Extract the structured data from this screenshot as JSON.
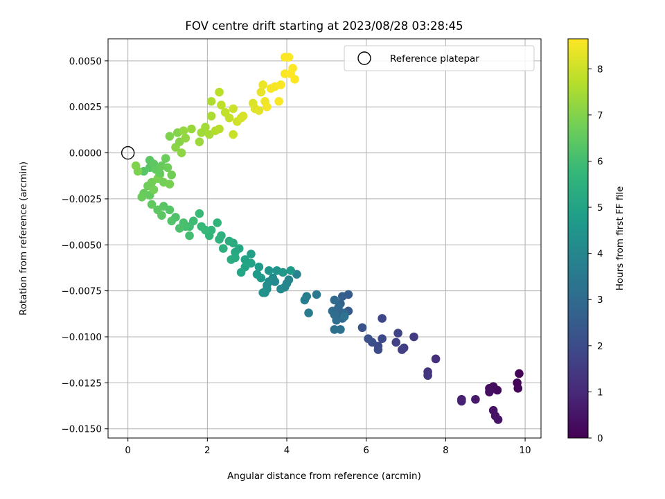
{
  "chart_data": {
    "type": "scatter",
    "title": "FOV centre drift starting at 2023/08/28 03:28:45",
    "xlabel": "Angular distance from reference (arcmin)",
    "ylabel": "Rotation from reference (arcmin)",
    "xlim": [
      -0.5,
      10.4
    ],
    "ylim": [
      -0.0155,
      0.0062
    ],
    "xticks": [
      0,
      2,
      4,
      6,
      8,
      10
    ],
    "yticks": [
      0.005,
      0.0025,
      0.0,
      -0.0025,
      -0.005,
      -0.0075,
      -0.01,
      -0.0125,
      -0.015
    ],
    "xtick_labels": [
      "0",
      "2",
      "4",
      "6",
      "8",
      "10"
    ],
    "ytick_labels": [
      "0.0050",
      "0.0025",
      "0.0000",
      "−0.0025",
      "−0.0050",
      "−0.0075",
      "−0.0100",
      "−0.0125",
      "−0.0150"
    ],
    "grid": true,
    "legend": {
      "position": "top-right",
      "entries": [
        "Reference platepar"
      ]
    },
    "reference_point": {
      "x": 0,
      "y": 0
    },
    "colorbar": {
      "label": "Hours from first FF file",
      "colormap": "viridis",
      "range": [
        0,
        8.65
      ],
      "ticks": [
        0,
        1,
        2,
        3,
        4,
        5,
        6,
        7,
        8
      ],
      "tick_labels": [
        "0",
        "1",
        "2",
        "3",
        "4",
        "5",
        "6",
        "7",
        "8"
      ]
    },
    "series": [
      {
        "columns": [
          "x",
          "y",
          "hours"
        ],
        "points": [
          [
            9.85,
            -0.012,
            0.05
          ],
          [
            9.8,
            -0.0125,
            0.1
          ],
          [
            9.82,
            -0.0128,
            0.12
          ],
          [
            9.3,
            -0.0129,
            0.2
          ],
          [
            9.2,
            -0.0127,
            0.25
          ],
          [
            9.1,
            -0.0128,
            0.3
          ],
          [
            9.1,
            -0.013,
            0.35
          ],
          [
            9.2,
            -0.014,
            0.4
          ],
          [
            9.25,
            -0.0143,
            0.45
          ],
          [
            9.32,
            -0.0145,
            0.5
          ],
          [
            8.75,
            -0.0134,
            0.6
          ],
          [
            8.4,
            -0.0134,
            0.7
          ],
          [
            8.4,
            -0.0135,
            0.8
          ],
          [
            7.75,
            -0.0112,
            1.2
          ],
          [
            7.55,
            -0.0119,
            1.3
          ],
          [
            7.55,
            -0.0121,
            1.35
          ],
          [
            7.2,
            -0.01,
            1.5
          ],
          [
            6.95,
            -0.0106,
            1.6
          ],
          [
            6.9,
            -0.0107,
            1.65
          ],
          [
            6.75,
            -0.0103,
            1.7
          ],
          [
            6.8,
            -0.0098,
            1.75
          ],
          [
            6.4,
            -0.009,
            1.8
          ],
          [
            6.4,
            -0.0101,
            1.9
          ],
          [
            6.3,
            -0.0105,
            1.95
          ],
          [
            6.3,
            -0.0107,
            2.0
          ],
          [
            6.15,
            -0.0103,
            2.05
          ],
          [
            6.05,
            -0.0101,
            2.1
          ],
          [
            5.9,
            -0.0095,
            2.2
          ],
          [
            5.55,
            -0.0086,
            2.4
          ],
          [
            5.55,
            -0.0077,
            2.5
          ],
          [
            5.4,
            -0.0078,
            2.6
          ],
          [
            5.35,
            -0.0082,
            2.7
          ],
          [
            5.35,
            -0.0087,
            2.75
          ],
          [
            5.4,
            -0.009,
            2.8
          ],
          [
            5.45,
            -0.0087,
            2.85
          ],
          [
            5.3,
            -0.0084,
            2.9
          ],
          [
            5.2,
            -0.008,
            2.95
          ],
          [
            5.15,
            -0.0086,
            3.0
          ],
          [
            5.2,
            -0.0088,
            3.05
          ],
          [
            5.25,
            -0.0091,
            3.1
          ],
          [
            5.2,
            -0.0096,
            3.15
          ],
          [
            5.35,
            -0.0096,
            3.2
          ],
          [
            5.45,
            -0.0089,
            3.25
          ],
          [
            4.75,
            -0.0077,
            3.5
          ],
          [
            4.55,
            -0.0087,
            3.6
          ],
          [
            4.5,
            -0.0078,
            3.65
          ],
          [
            4.45,
            -0.008,
            3.7
          ],
          [
            4.25,
            -0.0066,
            3.8
          ],
          [
            4.05,
            -0.0069,
            3.9
          ],
          [
            4.0,
            -0.0071,
            3.95
          ],
          [
            3.95,
            -0.0073,
            4.0
          ],
          [
            3.85,
            -0.0074,
            4.05
          ],
          [
            3.7,
            -0.007,
            4.1
          ],
          [
            3.65,
            -0.0068,
            4.15
          ],
          [
            3.55,
            -0.007,
            4.2
          ],
          [
            3.5,
            -0.0072,
            4.25
          ],
          [
            3.5,
            -0.0074,
            4.3
          ],
          [
            3.45,
            -0.0076,
            4.35
          ],
          [
            3.4,
            -0.0076,
            4.4
          ],
          [
            3.55,
            -0.0064,
            4.45
          ],
          [
            3.75,
            -0.0064,
            4.5
          ],
          [
            3.9,
            -0.0065,
            4.55
          ],
          [
            4.1,
            -0.0064,
            4.6
          ],
          [
            3.35,
            -0.0068,
            4.65
          ],
          [
            3.25,
            -0.0066,
            4.7
          ],
          [
            3.3,
            -0.0062,
            4.75
          ],
          [
            3.1,
            -0.0055,
            4.9
          ],
          [
            3.1,
            -0.006,
            4.95
          ],
          [
            2.95,
            -0.0058,
            5.0
          ],
          [
            2.95,
            -0.0062,
            5.05
          ],
          [
            2.85,
            -0.0065,
            5.1
          ],
          [
            2.8,
            -0.0052,
            5.15
          ],
          [
            2.7,
            -0.0054,
            5.2
          ],
          [
            2.7,
            -0.0057,
            5.25
          ],
          [
            2.6,
            -0.0058,
            5.3
          ],
          [
            2.65,
            -0.0049,
            5.35
          ],
          [
            2.55,
            -0.0048,
            5.4
          ],
          [
            2.4,
            -0.0052,
            5.45
          ],
          [
            2.35,
            -0.0045,
            5.5
          ],
          [
            2.3,
            -0.0047,
            5.55
          ],
          [
            2.25,
            -0.0038,
            5.6
          ],
          [
            2.1,
            -0.0042,
            5.65
          ],
          [
            2.05,
            -0.0045,
            5.7
          ],
          [
            1.95,
            -0.0042,
            5.75
          ],
          [
            1.85,
            -0.004,
            5.8
          ],
          [
            1.8,
            -0.0033,
            5.85
          ],
          [
            1.65,
            -0.0037,
            5.9
          ],
          [
            1.55,
            -0.004,
            5.95
          ],
          [
            1.55,
            -0.0045,
            6.0
          ],
          [
            1.45,
            -0.004,
            6.05
          ],
          [
            1.4,
            -0.0038,
            6.1
          ],
          [
            1.3,
            -0.0041,
            6.15
          ],
          [
            1.2,
            -0.0035,
            6.2
          ],
          [
            1.1,
            -0.0037,
            6.25
          ],
          [
            1.05,
            -0.0031,
            6.3
          ],
          [
            0.9,
            -0.0029,
            6.35
          ],
          [
            0.85,
            -0.0034,
            6.4
          ],
          [
            0.75,
            -0.0031,
            6.45
          ],
          [
            0.6,
            -0.0028,
            6.5
          ],
          [
            0.55,
            -0.0023,
            6.55
          ],
          [
            0.4,
            -0.0022,
            6.6
          ],
          [
            0.35,
            -0.0024,
            6.65
          ],
          [
            0.5,
            -0.0018,
            6.7
          ],
          [
            0.6,
            -0.0016,
            6.75
          ],
          [
            0.65,
            -0.002,
            6.8
          ],
          [
            0.75,
            -0.0014,
            6.85
          ],
          [
            0.8,
            -0.0012,
            6.9
          ],
          [
            0.4,
            -0.001,
            6.3
          ],
          [
            0.55,
            -0.0008,
            6.35
          ],
          [
            0.55,
            -0.0004,
            6.4
          ],
          [
            0.65,
            -0.0006,
            6.45
          ],
          [
            0.7,
            -0.0009,
            6.5
          ],
          [
            0.8,
            -0.0011,
            6.55
          ],
          [
            0.85,
            -0.0007,
            6.6
          ],
          [
            0.95,
            -0.0003,
            6.65
          ],
          [
            1.0,
            -0.0008,
            6.7
          ],
          [
            1.1,
            -0.0012,
            6.75
          ],
          [
            0.9,
            -0.0016,
            6.8
          ],
          [
            1.05,
            -0.0017,
            6.85
          ],
          [
            0.25,
            -0.001,
            6.9
          ],
          [
            0.2,
            -0.0007,
            6.95
          ],
          [
            1.05,
            0.0009,
            6.95
          ],
          [
            1.25,
            0.0011,
            7.0
          ],
          [
            1.3,
            0.0006,
            7.05
          ],
          [
            1.2,
            0.0003,
            7.1
          ],
          [
            1.35,
            0.0,
            7.15
          ],
          [
            1.45,
            0.0008,
            7.2
          ],
          [
            1.4,
            0.0012,
            7.25
          ],
          [
            1.6,
            0.0013,
            7.3
          ],
          [
            1.8,
            0.0006,
            7.35
          ],
          [
            1.85,
            0.0011,
            7.4
          ],
          [
            1.95,
            0.0014,
            7.45
          ],
          [
            2.05,
            0.001,
            7.5
          ],
          [
            2.1,
            0.002,
            7.55
          ],
          [
            2.1,
            0.0028,
            7.6
          ],
          [
            2.2,
            0.0012,
            7.65
          ],
          [
            2.3,
            0.0013,
            7.7
          ],
          [
            2.3,
            0.0033,
            7.75
          ],
          [
            2.35,
            0.0026,
            7.8
          ],
          [
            2.45,
            0.0022,
            7.85
          ],
          [
            2.55,
            0.0019,
            7.9
          ],
          [
            2.65,
            0.001,
            7.95
          ],
          [
            2.65,
            0.0024,
            8.0
          ],
          [
            2.75,
            0.0017,
            8.05
          ],
          [
            2.85,
            0.0019,
            8.1
          ],
          [
            2.9,
            0.002,
            8.15
          ],
          [
            3.15,
            0.0027,
            8.2
          ],
          [
            3.2,
            0.0024,
            8.25
          ],
          [
            3.3,
            0.0023,
            8.3
          ],
          [
            3.35,
            0.0033,
            8.35
          ],
          [
            3.4,
            0.0037,
            8.4
          ],
          [
            3.45,
            0.0028,
            8.45
          ],
          [
            3.5,
            0.0025,
            8.5
          ],
          [
            3.6,
            0.0035,
            8.55
          ],
          [
            3.7,
            0.0036,
            8.55
          ],
          [
            3.8,
            0.0028,
            8.6
          ],
          [
            3.85,
            0.0037,
            8.6
          ],
          [
            3.95,
            0.0043,
            8.6
          ],
          [
            3.95,
            0.0052,
            8.62
          ],
          [
            4.05,
            0.0052,
            8.62
          ],
          [
            4.1,
            0.0043,
            8.65
          ],
          [
            4.15,
            0.0046,
            8.65
          ],
          [
            4.2,
            0.004,
            8.65
          ]
        ]
      }
    ]
  }
}
